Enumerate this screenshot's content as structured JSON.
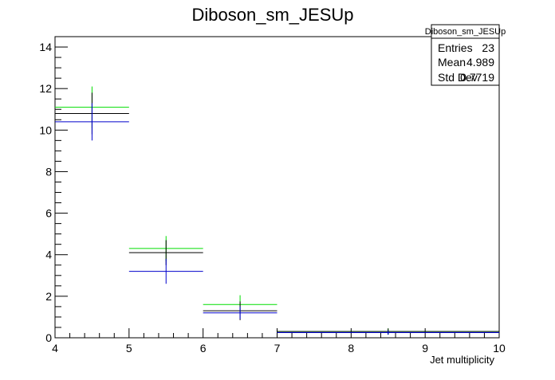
{
  "chart_data": {
    "type": "histogram",
    "title": "Diboson_sm_JESUp",
    "xlabel": "Jet multiplicity",
    "ylabel": "",
    "xlim": [
      4,
      10
    ],
    "ylim": [
      0,
      14.5
    ],
    "x_ticks": [
      "4",
      "5",
      "6",
      "7",
      "8",
      "9",
      "10"
    ],
    "y_ticks": [
      "0",
      "2",
      "4",
      "6",
      "8",
      "10",
      "12",
      "14"
    ],
    "bins": [
      [
        4,
        5
      ],
      [
        5,
        6
      ],
      [
        6,
        7
      ],
      [
        7,
        10
      ]
    ],
    "series": [
      {
        "color": "#00dd00",
        "values": [
          11.1,
          4.3,
          1.6,
          0.3
        ],
        "errors": [
          1.0,
          0.6,
          0.45,
          0.15
        ]
      },
      {
        "color": "#000000",
        "values": [
          10.8,
          4.1,
          1.3,
          0.3
        ],
        "errors": [
          1.0,
          0.6,
          0.45,
          0.15
        ]
      },
      {
        "color": "#0000cc",
        "values": [
          10.4,
          3.2,
          1.2,
          0.25
        ],
        "errors": [
          0.9,
          0.6,
          0.3,
          0.1
        ]
      }
    ],
    "stats_box": {
      "title": "Diboson_sm_JESUp",
      "rows": [
        {
          "label": "Entries",
          "value": "23"
        },
        {
          "label": "Mean",
          "value": "4.989"
        },
        {
          "label": "Std Dev",
          "value": "0.7719"
        }
      ]
    },
    "grid": false,
    "legend": "none"
  }
}
